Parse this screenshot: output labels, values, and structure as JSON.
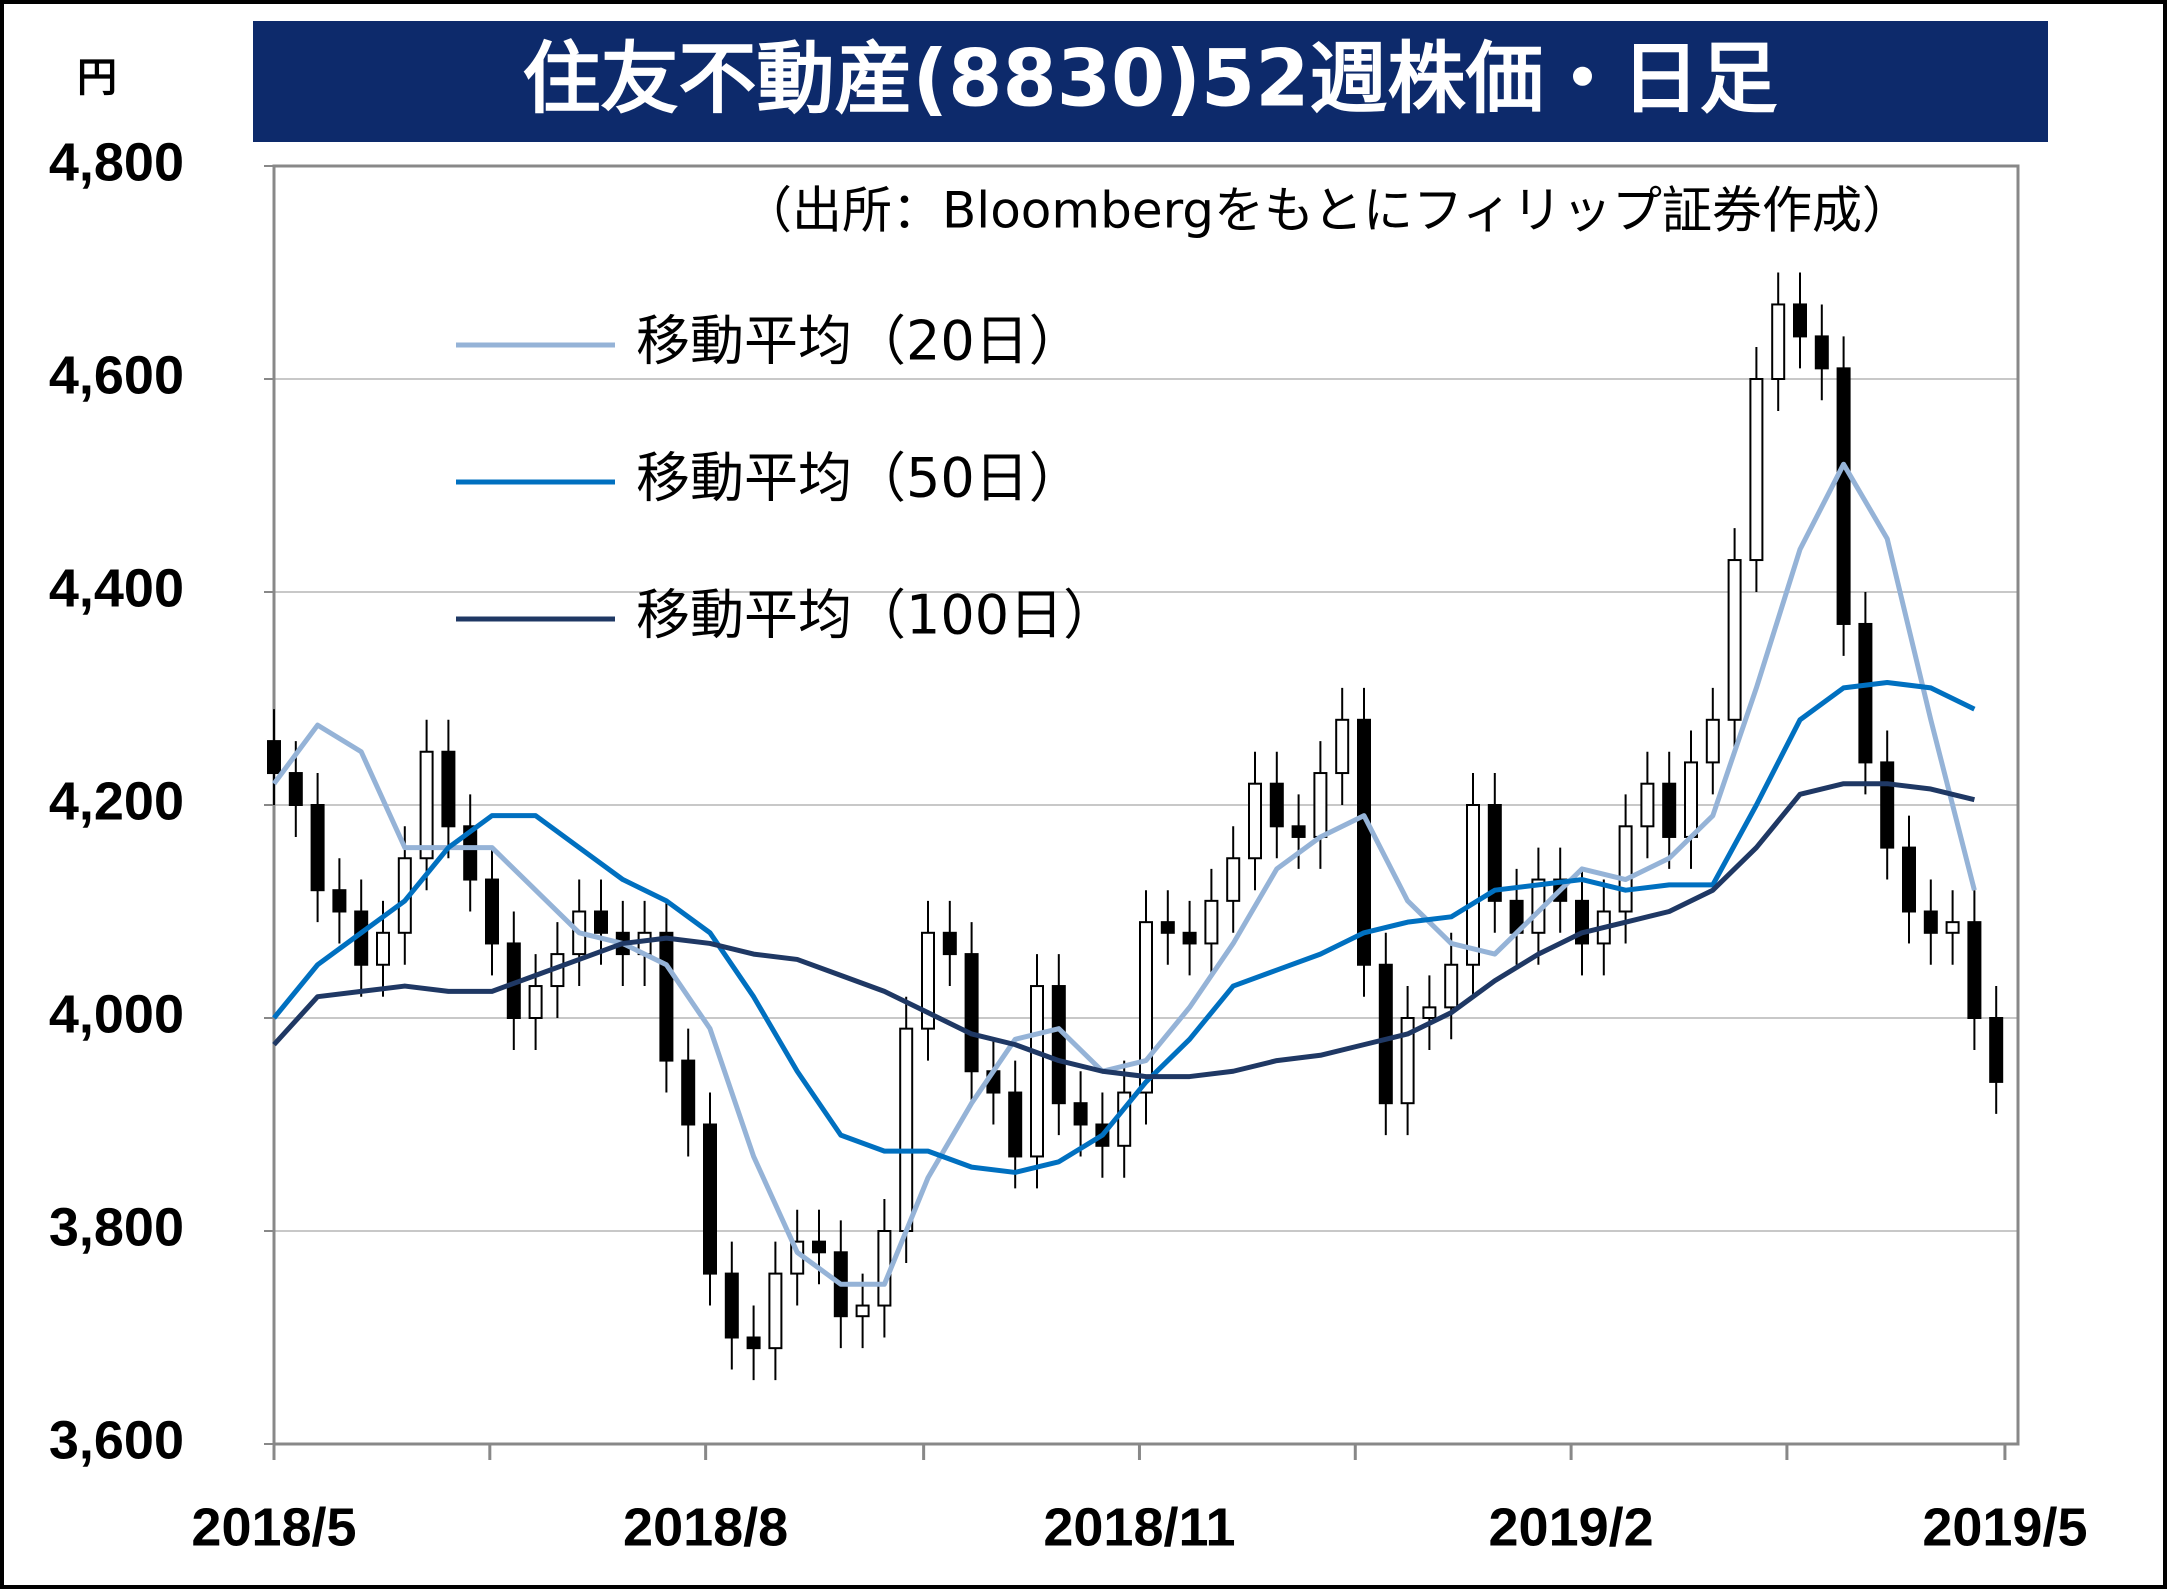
{
  "chart_data": {
    "type": "candlestick",
    "title": "住友不動産(8830)52週株価・日足",
    "y_label": "円",
    "annotation": "（出所：Bloombergをもとにフィリップ証券作成）",
    "xlim": [
      0,
      80
    ],
    "xticks": [
      {
        "value": 0,
        "label": "2018/5"
      },
      9.9,
      {
        "value": 19.8,
        "label": "2018/8"
      },
      29.8,
      {
        "value": 39.7,
        "label": "2018/11"
      },
      49.6,
      {
        "value": 59.5,
        "label": "2019/2"
      },
      69.4,
      {
        "value": 79.4,
        "label": "2019/5"
      }
    ],
    "ylim": [
      3600,
      4800
    ],
    "yticks": [
      {
        "value": 3600,
        "label": "3,600"
      },
      {
        "value": 3800,
        "label": "3,800"
      },
      {
        "value": 4000,
        "label": "4,000"
      },
      {
        "value": 4200,
        "label": "4,200"
      },
      {
        "value": 4400,
        "label": "4,400"
      },
      {
        "value": 4600,
        "label": "4,600"
      },
      {
        "value": 4800,
        "label": "4,800"
      }
    ],
    "grid": true,
    "candle_color": "#000000",
    "open": [
      4260,
      4230,
      4200,
      4120,
      4100,
      4050,
      4080,
      4150,
      4250,
      4180,
      4130,
      4070,
      4000,
      4030,
      4060,
      4100,
      4080,
      4060,
      4080,
      3960,
      3900,
      3760,
      3700,
      3690,
      3760,
      3790,
      3780,
      3720,
      3730,
      3800,
      3990,
      4080,
      4060,
      3950,
      3930,
      3870,
      4030,
      3920,
      3900,
      3880,
      3930,
      4090,
      4080,
      4070,
      4110,
      4150,
      4220,
      4180,
      4170,
      4230,
      4280,
      4050,
      3920,
      4000,
      4010,
      4050,
      4200,
      4110,
      4080,
      4130,
      4110,
      4070,
      4100,
      4180,
      4220,
      4170,
      4240,
      4280,
      4430,
      4600,
      4670,
      4640,
      4610,
      4370,
      4240,
      4160,
      4100,
      4080,
      4090,
      4000
    ],
    "high": [
      4290,
      4260,
      4230,
      4150,
      4130,
      4110,
      4180,
      4280,
      4280,
      4210,
      4160,
      4100,
      4060,
      4090,
      4130,
      4130,
      4110,
      4110,
      4110,
      3990,
      3930,
      3790,
      3730,
      3790,
      3820,
      3820,
      3810,
      3760,
      3830,
      4020,
      4110,
      4110,
      4090,
      3980,
      3960,
      4060,
      4060,
      3950,
      3930,
      3960,
      4120,
      4120,
      4110,
      4140,
      4180,
      4250,
      4250,
      4210,
      4260,
      4310,
      4310,
      4080,
      4030,
      4040,
      4080,
      4230,
      4230,
      4140,
      4160,
      4160,
      4140,
      4130,
      4210,
      4250,
      4250,
      4270,
      4310,
      4460,
      4630,
      4700,
      4700,
      4670,
      4640,
      4400,
      4270,
      4190,
      4130,
      4120,
      4120,
      4030
    ],
    "low": [
      4200,
      4170,
      4090,
      4070,
      4020,
      4020,
      4050,
      4120,
      4150,
      4100,
      4040,
      3970,
      3970,
      4000,
      4030,
      4050,
      4030,
      4030,
      3930,
      3870,
      3730,
      3670,
      3660,
      3660,
      3730,
      3750,
      3690,
      3690,
      3700,
      3770,
      3960,
      4030,
      3920,
      3900,
      3840,
      3840,
      3890,
      3870,
      3850,
      3850,
      3900,
      4050,
      4040,
      4040,
      4080,
      4120,
      4150,
      4140,
      4140,
      4200,
      4020,
      3890,
      3890,
      3970,
      3980,
      4020,
      4080,
      4050,
      4050,
      4080,
      4040,
      4040,
      4070,
      4150,
      4140,
      4140,
      4210,
      4250,
      4400,
      4570,
      4610,
      4580,
      4340,
      4210,
      4130,
      4070,
      4050,
      4050,
      3970,
      3910
    ],
    "close": [
      4230,
      4200,
      4120,
      4100,
      4050,
      4080,
      4150,
      4250,
      4180,
      4130,
      4070,
      4000,
      4030,
      4060,
      4100,
      4080,
      4060,
      4080,
      3960,
      3900,
      3760,
      3700,
      3690,
      3760,
      3790,
      3780,
      3720,
      3730,
      3800,
      3990,
      4080,
      4060,
      3950,
      3930,
      3870,
      4030,
      3920,
      3900,
      3880,
      3930,
      4090,
      4080,
      4070,
      4110,
      4150,
      4220,
      4180,
      4170,
      4230,
      4280,
      4050,
      3920,
      4000,
      4010,
      4050,
      4200,
      4110,
      4080,
      4130,
      4110,
      4070,
      4100,
      4180,
      4220,
      4170,
      4240,
      4280,
      4430,
      4600,
      4670,
      4640,
      4610,
      4370,
      4240,
      4160,
      4100,
      4080,
      4090,
      4000,
      3940
    ],
    "series": [
      {
        "name": "移動平均（20日）",
        "color": "#95b3d7",
        "x": [
          0,
          2,
          4,
          6,
          8,
          10,
          12,
          14,
          16,
          18,
          20,
          22,
          24,
          26,
          28,
          30,
          32,
          34,
          36,
          38,
          40,
          42,
          44,
          46,
          48,
          50,
          52,
          54,
          56,
          58,
          60,
          62,
          64,
          66,
          68,
          70,
          72,
          74,
          76,
          78
        ],
        "values": [
          4220,
          4275,
          4250,
          4160,
          4160,
          4160,
          4120,
          4080,
          4070,
          4050,
          3990,
          3870,
          3780,
          3750,
          3750,
          3850,
          3920,
          3980,
          3990,
          3950,
          3960,
          4010,
          4070,
          4140,
          4170,
          4190,
          4110,
          4070,
          4060,
          4100,
          4140,
          4130,
          4150,
          4190,
          4310,
          4440,
          4520,
          4450,
          4280,
          4120
        ]
      },
      {
        "name": "移動平均（50日）",
        "color": "#0070c0",
        "x": [
          0,
          2,
          4,
          6,
          8,
          10,
          12,
          14,
          16,
          18,
          20,
          22,
          24,
          26,
          28,
          30,
          32,
          34,
          36,
          38,
          40,
          42,
          44,
          46,
          48,
          50,
          52,
          54,
          56,
          58,
          60,
          62,
          64,
          66,
          68,
          70,
          72,
          74,
          76,
          78
        ],
        "values": [
          4000,
          4050,
          4080,
          4110,
          4160,
          4190,
          4190,
          4160,
          4130,
          4110,
          4080,
          4020,
          3950,
          3890,
          3875,
          3875,
          3860,
          3855,
          3865,
          3890,
          3940,
          3980,
          4030,
          4045,
          4060,
          4080,
          4090,
          4095,
          4120,
          4125,
          4130,
          4120,
          4125,
          4125,
          4200,
          4280,
          4310,
          4315,
          4310,
          4290
        ]
      },
      {
        "name": "移動平均（100日）",
        "color": "#1f3864",
        "x": [
          0,
          2,
          4,
          6,
          8,
          10,
          12,
          14,
          16,
          18,
          20,
          22,
          24,
          26,
          28,
          30,
          32,
          34,
          36,
          38,
          40,
          42,
          44,
          46,
          48,
          50,
          52,
          54,
          56,
          58,
          60,
          62,
          64,
          66,
          68,
          70,
          72,
          74,
          76,
          78
        ],
        "values": [
          3975,
          4020,
          4025,
          4030,
          4025,
          4025,
          4040,
          4055,
          4070,
          4075,
          4070,
          4060,
          4055,
          4040,
          4025,
          4005,
          3985,
          3975,
          3960,
          3950,
          3945,
          3945,
          3950,
          3960,
          3965,
          3975,
          3985,
          4005,
          4035,
          4060,
          4080,
          4090,
          4100,
          4120,
          4160,
          4210,
          4220,
          4220,
          4215,
          4205
        ]
      }
    ]
  }
}
